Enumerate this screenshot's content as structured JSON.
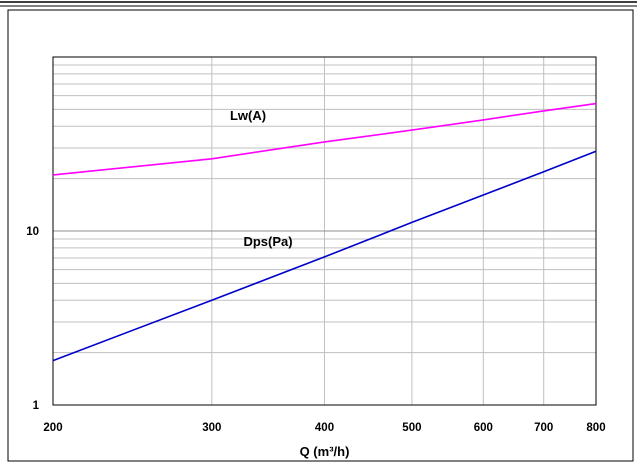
{
  "chart_data": {
    "type": "line",
    "title": "",
    "xlabel": "Q (m³/h)",
    "ylabel": "",
    "x_scale": "log",
    "y_scale": "log",
    "xlim": [
      200,
      800
    ],
    "ylim": [
      1,
      100
    ],
    "x_ticks": [
      200,
      300,
      400,
      500,
      600,
      700,
      800
    ],
    "x_tick_labels": [
      "200",
      "300",
      "400",
      "500",
      "600",
      "700",
      "800"
    ],
    "y_ticks": [
      1,
      10
    ],
    "y_tick_labels": [
      "1",
      "10"
    ],
    "grid": true,
    "legend": "none",
    "series": [
      {
        "name": "Lw(A)",
        "color": "#ff00ff",
        "x": [
          200,
          300,
          400,
          500,
          600,
          700,
          800
        ],
        "y": [
          21,
          26,
          32.5,
          38,
          43.5,
          49,
          54
        ]
      },
      {
        "name": "Dps(Pa)",
        "color": "#0000cc",
        "x": [
          200,
          300,
          400,
          500,
          600,
          700,
          800
        ],
        "y": [
          1.8,
          4.0,
          7.1,
          11.2,
          16.1,
          21.9,
          28.7
        ]
      }
    ]
  }
}
